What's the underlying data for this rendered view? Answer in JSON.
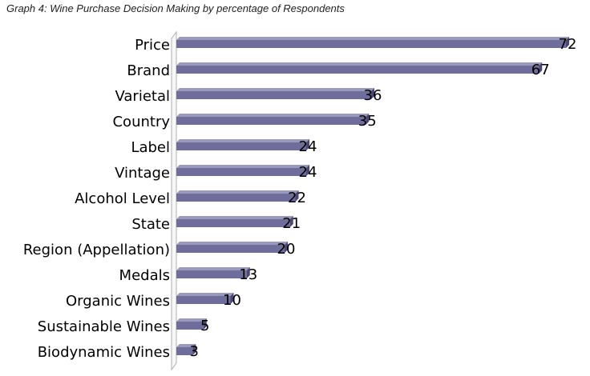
{
  "title": "Graph 4: Wine Purchase Decision Making by percentage of Respondents",
  "colors": {
    "bar_face": "#6f6d9a",
    "bar_top": "#9a98c0",
    "bar_shadow": "#4a4870",
    "axis_wall": "#b0b0b0"
  },
  "chart_data": {
    "type": "bar",
    "orientation": "horizontal",
    "title": "Graph 4: Wine Purchase Decision Making by percentage of Respondents",
    "categories": [
      "Price",
      "Brand",
      "Varietal",
      "Country",
      "Label",
      "Vintage",
      "Alcohol Level",
      "State",
      "Region (Appellation)",
      "Medals",
      "Organic Wines",
      "Sustainable Wines",
      "Biodynamic Wines"
    ],
    "values": [
      72,
      67,
      36,
      35,
      24,
      24,
      22,
      21,
      20,
      13,
      10,
      5,
      3
    ],
    "value_labels": [
      "72",
      "67",
      "36",
      "35",
      "24",
      "24",
      "22",
      "21",
      "20",
      "13",
      "10",
      "5",
      "3"
    ],
    "xlim": [
      0,
      72
    ],
    "grid": false,
    "legend": "none"
  }
}
